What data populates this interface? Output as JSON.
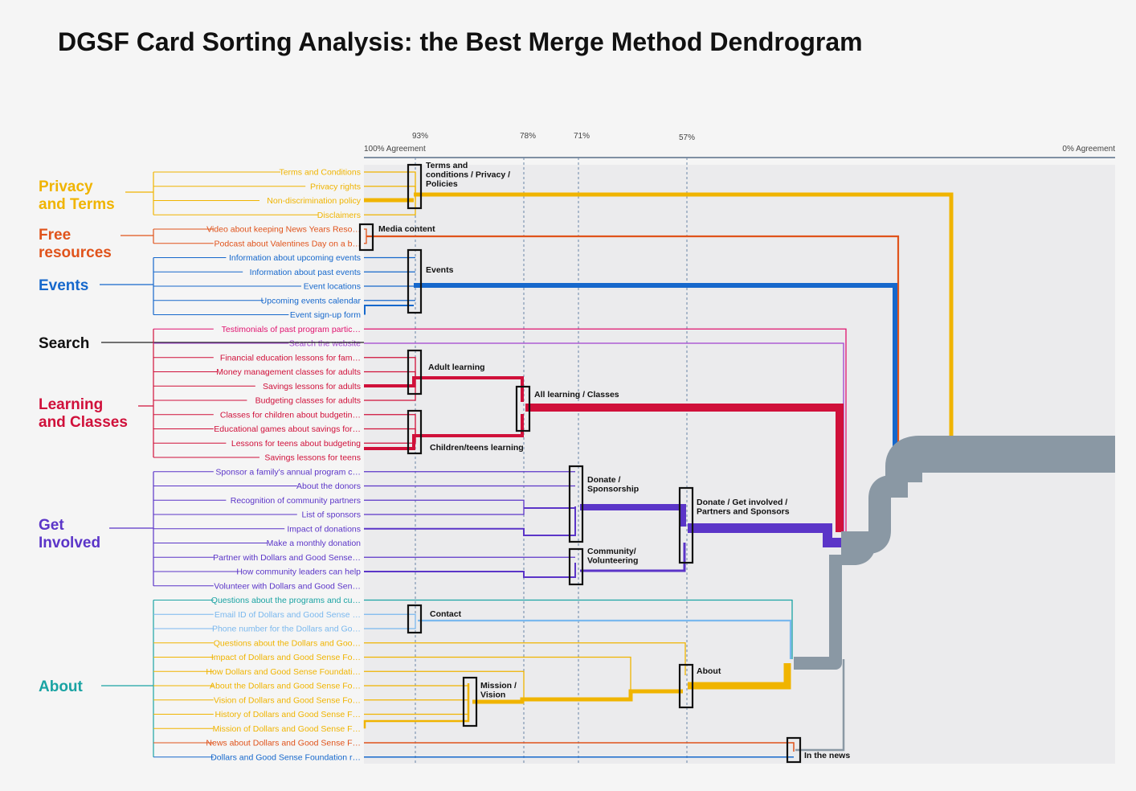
{
  "title": "DGSF Card Sorting Analysis: the Best Merge Method Dendrogram",
  "axis": {
    "left_label": "100% Agreement",
    "right_label": "0% Agreement",
    "ticks": [
      "93%",
      "78%",
      "71%",
      "57%"
    ]
  },
  "colors": {
    "privacy": "#f0b400",
    "free": "#e0531b",
    "events": "#1668cc",
    "search_line": "#222222",
    "search_card": "#a040d0",
    "learning": "#d0103a",
    "involved": "#5b35c8",
    "about": "#1aa3a3",
    "about_gold": "#f0b400",
    "about_lightblue": "#7ab8ee",
    "testimonials": "#e0136f",
    "trunk": "#8a98a4"
  },
  "categories": [
    {
      "label": "Privacy\nand Terms",
      "line1": "Privacy",
      "line2": "and Terms"
    },
    {
      "label": "Free\nresources",
      "line1": "Free",
      "line2": "resources"
    },
    {
      "label": "Events",
      "line1": "Events",
      "line2": ""
    },
    {
      "label": "Search",
      "line1": "Search",
      "line2": ""
    },
    {
      "label": "Learning\nand Classes",
      "line1": "Learning",
      "line2": "and Classes"
    },
    {
      "label": "Get\nInvolved",
      "line1": "Get",
      "line2": "Involved"
    },
    {
      "label": "About",
      "line1": "About",
      "line2": ""
    }
  ],
  "cards": [
    {
      "text": "Terms and Conditions",
      "group": "privacy"
    },
    {
      "text": "Privacy rights",
      "group": "privacy"
    },
    {
      "text": "Non-discrimination policy",
      "group": "privacy"
    },
    {
      "text": "Disclaimers",
      "group": "privacy"
    },
    {
      "text": "Video about keeping News Years Reso…",
      "group": "free"
    },
    {
      "text": "Podcast about Valentines Day on a b…",
      "group": "free"
    },
    {
      "text": "Information about upcoming events",
      "group": "events"
    },
    {
      "text": "Information about past events",
      "group": "events"
    },
    {
      "text": "Event locations",
      "group": "events"
    },
    {
      "text": "Upcoming events calendar",
      "group": "events"
    },
    {
      "text": "Event sign-up form",
      "group": "events"
    },
    {
      "text": "Testimonials of past program partic…",
      "group": "testimonials"
    },
    {
      "text": "Search the website",
      "group": "search"
    },
    {
      "text": "Financial education lessons for fam…",
      "group": "learning"
    },
    {
      "text": "Money management classes for adults",
      "group": "learning"
    },
    {
      "text": "Savings lessons for adults",
      "group": "learning"
    },
    {
      "text": "Budgeting classes for adults",
      "group": "learning"
    },
    {
      "text": "Classes for children about budgetin…",
      "group": "learning"
    },
    {
      "text": "Educational games about savings for…",
      "group": "learning"
    },
    {
      "text": "Lessons for teens about budgeting",
      "group": "learning"
    },
    {
      "text": "Savings lessons for teens",
      "group": "learning"
    },
    {
      "text": "Sponsor a family's annual program c…",
      "group": "involved"
    },
    {
      "text": "About the donors",
      "group": "involved"
    },
    {
      "text": "Recognition of community partners",
      "group": "involved"
    },
    {
      "text": "List of sponsors",
      "group": "involved"
    },
    {
      "text": "Impact of donations",
      "group": "involved"
    },
    {
      "text": "Make a monthly donation",
      "group": "involved"
    },
    {
      "text": "Partner with Dollars and Good Sense…",
      "group": "involved"
    },
    {
      "text": "How community leaders can help",
      "group": "involved"
    },
    {
      "text": "Volunteer with Dollars and Good Sen…",
      "group": "involved"
    },
    {
      "text": "Questions about the programs and cu…",
      "group": "about"
    },
    {
      "text": "Email ID of Dollars and Good Sense …",
      "group": "about_lightblue"
    },
    {
      "text": "Phone number for the Dollars and Go…",
      "group": "about_lightblue"
    },
    {
      "text": "Questions about the Dollars and Goo…",
      "group": "about_gold"
    },
    {
      "text": "Impact of Dollars and Good Sense Fo…",
      "group": "about_gold"
    },
    {
      "text": "How Dollars and Good Sense Foundati…",
      "group": "about_gold"
    },
    {
      "text": "About the Dollars and Good Sense Fo…",
      "group": "about_gold"
    },
    {
      "text": "Vision of Dollars and Good Sense Fo…",
      "group": "about_gold"
    },
    {
      "text": "History of Dollars and Good Sense F…",
      "group": "about_gold"
    },
    {
      "text": "Mission of Dollars and Good Sense F…",
      "group": "about_gold"
    },
    {
      "text": "News about Dollars and Good Sense F…",
      "group": "free"
    },
    {
      "text": "Dollars and Good Sense Foundation r…",
      "group": "events"
    }
  ],
  "clusters": [
    {
      "label": "Terms and\nconditions / Privacy /\nPolicies"
    },
    {
      "label": "Media content"
    },
    {
      "label": "Events"
    },
    {
      "label": "Adult learning"
    },
    {
      "label": "Children/teens learning"
    },
    {
      "label": "All learning / Classes"
    },
    {
      "label": "Donate /\nSponsorship"
    },
    {
      "label": "Community/\nVolunteering"
    },
    {
      "label": "Donate / Get involved /\nPartners and Sponsors"
    },
    {
      "label": "Contact"
    },
    {
      "label": "Mission /\nVision"
    },
    {
      "label": "About"
    },
    {
      "label": "In the news"
    }
  ]
}
